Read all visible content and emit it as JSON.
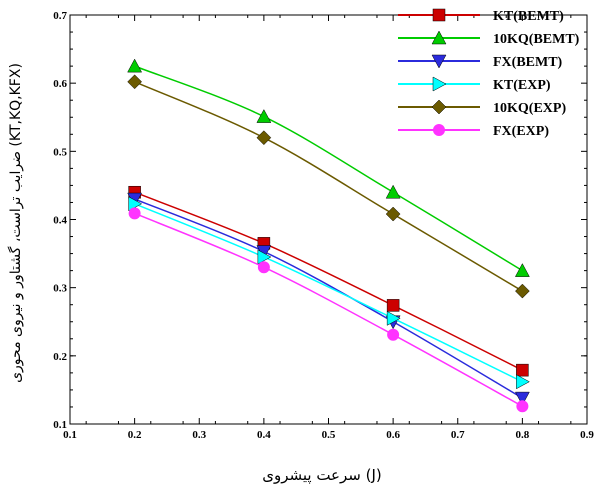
{
  "chart_data": {
    "type": "line",
    "xlabel": "سرعت پیشروی (J)",
    "ylabel": "ضرایب تراست، گشتاور و نیروی محوری (KT,KQ,KFX)",
    "xlim": [
      0.1,
      0.9
    ],
    "ylim": [
      0.1,
      0.7
    ],
    "xticks": [
      0.1,
      0.2,
      0.3,
      0.4,
      0.5,
      0.6,
      0.7,
      0.8,
      0.9
    ],
    "xtick_labels": [
      "0.1",
      "0.2",
      "0.3",
      "0.4",
      "0.5",
      "0.6",
      "0.7",
      "0.8",
      "0.9"
    ],
    "yticks": [
      0.1,
      0.2,
      0.3,
      0.4,
      0.5,
      0.6,
      0.7
    ],
    "ytick_labels": [
      "0.1",
      "0.2",
      "0.3",
      "0.4",
      "0.5",
      "0.6",
      "0.7"
    ],
    "grid": false,
    "legend_position": "top-right",
    "x": [
      0.2,
      0.4,
      0.6,
      0.8
    ],
    "series": [
      {
        "name": "KT(BEMT)",
        "color": "#cc0000",
        "marker": "square",
        "values": [
          0.44,
          0.365,
          0.274,
          0.179
        ]
      },
      {
        "name": "10KQ(BEMT)",
        "color": "#00cc00",
        "marker": "triangle-up",
        "values": [
          0.625,
          0.551,
          0.44,
          0.325
        ]
      },
      {
        "name": "FX(BEMT)",
        "color": "#2b2bdc",
        "marker": "triangle-down",
        "values": [
          0.43,
          0.353,
          0.25,
          0.138
        ]
      },
      {
        "name": "KT(EXP)",
        "color": "#00ffff",
        "marker": "triangle-right",
        "values": [
          0.423,
          0.345,
          0.255,
          0.162
        ]
      },
      {
        "name": "10KQ(EXP)",
        "color": "#6b5a00",
        "marker": "diamond",
        "values": [
          0.602,
          0.52,
          0.408,
          0.295
        ]
      },
      {
        "name": "FX(EXP)",
        "color": "#ff33ff",
        "marker": "circle",
        "values": [
          0.409,
          0.33,
          0.231,
          0.126
        ]
      }
    ]
  }
}
